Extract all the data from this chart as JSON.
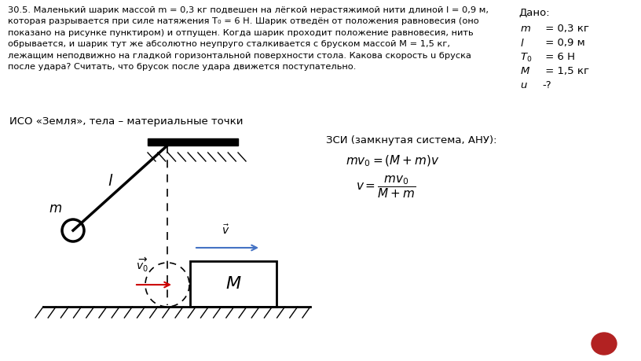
{
  "bg_color": "#ffffff",
  "problem_line1": "30.5. Маленький шарик массой ",
  "problem_line1_m": "m",
  "problem_line1b": " = 0,3 кг подвешен на лёгкой нерастяжимой нити длиной ",
  "problem_line1_l": "l",
  "problem_line1c": " = 0,9 м,",
  "fig_width": 8.16,
  "fig_height": 4.59,
  "dpi": 100,
  "dado_title": "Дано:",
  "dado_items": [
    [
      "m",
      " = 0,3 кг"
    ],
    [
      "l",
      " = 0,9 м"
    ],
    [
      "T_0",
      " = 6 Н"
    ],
    [
      "M",
      " = 1,5 кг"
    ],
    [
      "u",
      "-?"
    ]
  ],
  "iso_text": "ИСО «Земля», тела – материальные точки",
  "zsi_title": "ЗСИ (замкнутая система, АНУ):",
  "formula1": "$mv_0 = (M + m)v$",
  "formula2": "$v = \\dfrac{mv_0}{M+m}$",
  "problem_text_lines": [
    "30.5. Маленький шарик массой m = 0,3 кг подвешен на лёгкой нерастяжимой нити длиной l = 0,9 м,",
    "которая разрывается при силе натяжения T₀ = 6 Н. Шарик отведён от положения равновесия (оно",
    "показано на рисунке пунктиром) и отпущен. Когда шарик проходит положение равновесия, нить",
    "обрывается, и шарик тут же абсолютно неупруго сталкивается с бруском массой M = 1,5 кг,",
    "лежащим неподвижно на гладкой горизонтальной поверхности стола. Какова скорость u бруска",
    "после удара? Считать, что брусок после удара движется поступательно."
  ]
}
